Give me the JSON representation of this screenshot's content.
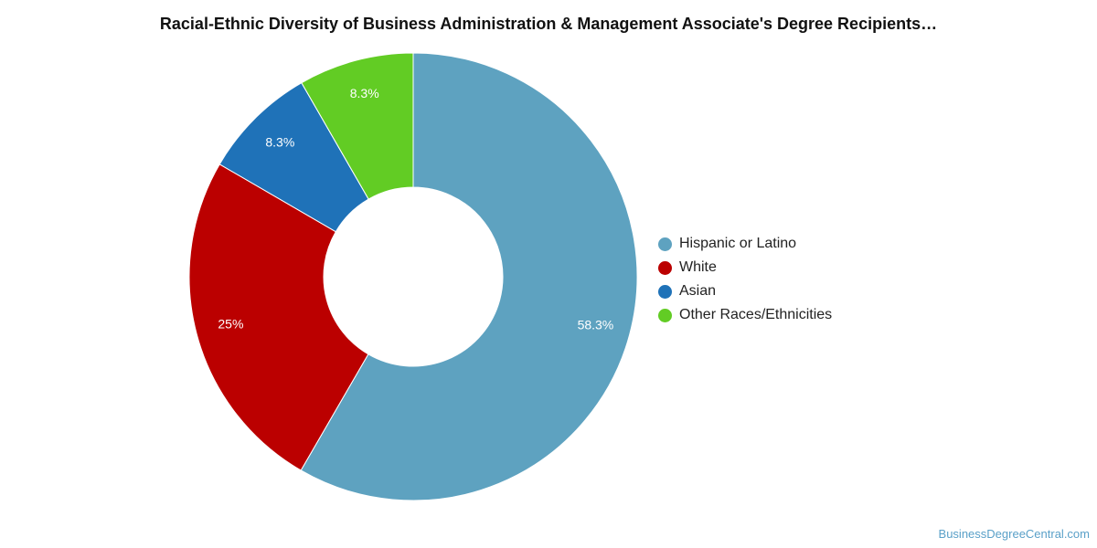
{
  "chart_data": {
    "type": "pie",
    "variant": "donut",
    "title": "Racial-Ethnic Diversity of Business Administration & Management Associate's Degree Recipients…",
    "categories": [
      "Hispanic or Latino",
      "White",
      "Asian",
      "Other Races/Ethnicities"
    ],
    "values": [
      58.3,
      25,
      8.3,
      8.3
    ],
    "labels": [
      "58.3%",
      "25%",
      "8.3%",
      "8.3%"
    ],
    "colors": [
      "#5ea2c0",
      "#bb0000",
      "#1f72b8",
      "#62cc24"
    ],
    "legend": "right"
  },
  "watermark": "BusinessDegreeCentral.com"
}
